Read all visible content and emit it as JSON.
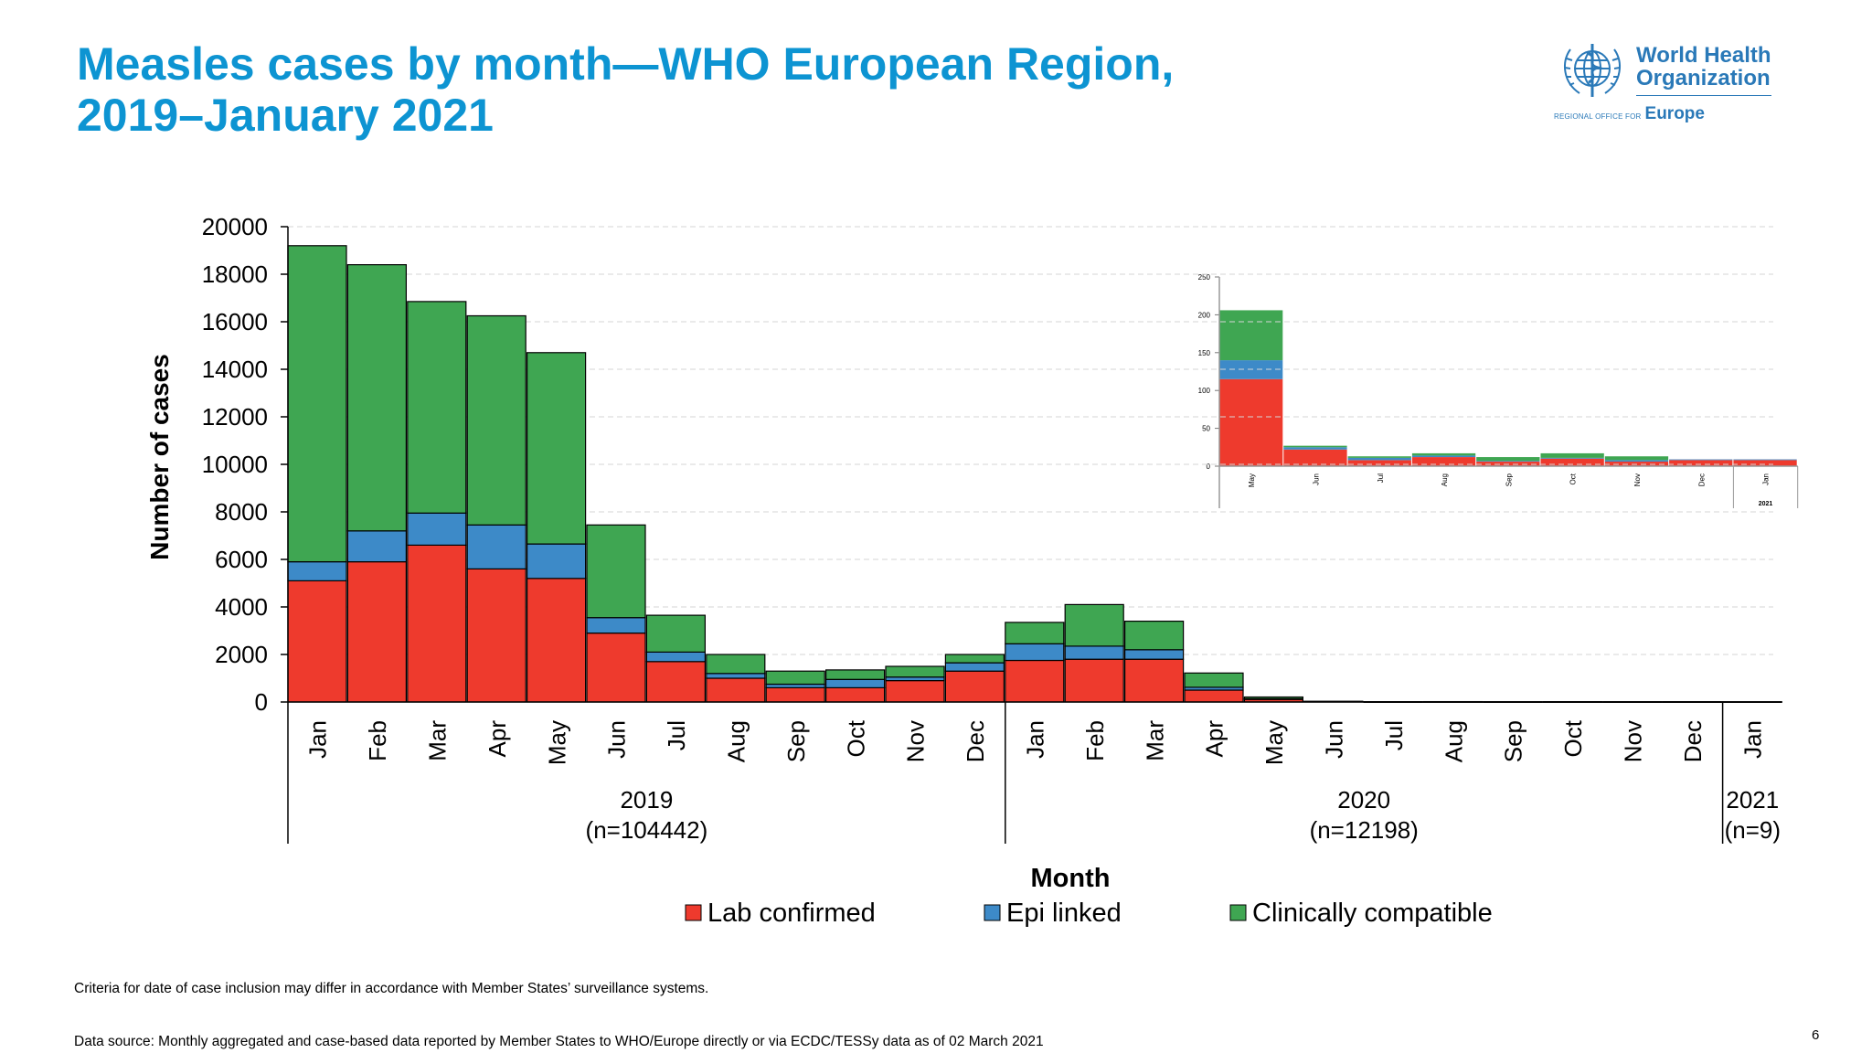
{
  "slide": {
    "title_line1": "Measles cases by month—WHO European Region,",
    "title_line2": "2019–January 2021",
    "logo": {
      "name_line1": "World Health",
      "name_line2": "Organization",
      "office_small": "REGIONAL OFFICE FOR",
      "office_big": "Europe",
      "icon": "who-emblem-icon",
      "color": "#2a79b8"
    },
    "footer_note": "Criteria for date of case inclusion may differ in accordance with Member States’ surveillance systems.",
    "footer_source": "Data source: Monthly aggregated and case-based data reported by Member States to WHO/Europe directly or via ECDC/TESSy data as of 02 March 2021",
    "page_number": "6",
    "title_color": "#0d94d2"
  },
  "chart_data": [
    {
      "type": "bar",
      "stacked": true,
      "ylabel": "Number of cases",
      "xlabel": "Month",
      "ylim": [
        0,
        20000
      ],
      "yticks": [
        "0",
        "2000",
        "4000",
        "6000",
        "8000",
        "10000",
        "12000",
        "14000",
        "16000",
        "18000",
        "20000"
      ],
      "grid": "horizontal dashed",
      "legend_position": "bottom",
      "categories": [
        "Jan",
        "Feb",
        "Mar",
        "Apr",
        "May",
        "Jun",
        "Jul",
        "Aug",
        "Sep",
        "Oct",
        "Nov",
        "Dec",
        "Jan",
        "Feb",
        "Mar",
        "Apr",
        "May",
        "Jun",
        "Jul",
        "Aug",
        "Sep",
        "Oct",
        "Nov",
        "Dec",
        "Jan"
      ],
      "year_groups": [
        {
          "label": "2019",
          "sublabel": "(n=104442)",
          "count": 12
        },
        {
          "label": "2020",
          "sublabel": "(n=12198)",
          "count": 12
        },
        {
          "label": "2021",
          "sublabel": "(n=9)",
          "count": 1
        }
      ],
      "series": [
        {
          "name": "Lab confirmed",
          "color": "#ee3a2d",
          "values": [
            5100,
            5900,
            6600,
            5600,
            5200,
            2900,
            1700,
            1000,
            600,
            600,
            900,
            1300,
            1750,
            1800,
            1800,
            500,
            110,
            20,
            8,
            10,
            5,
            8,
            5,
            7,
            7
          ]
        },
        {
          "name": "Epi linked",
          "color": "#3d8ac8",
          "values": [
            800,
            1300,
            1350,
            1850,
            1450,
            650,
            400,
            200,
            150,
            350,
            150,
            350,
            700,
            550,
            400,
            120,
            30,
            3,
            2,
            3,
            2,
            2,
            2,
            2,
            2
          ]
        },
        {
          "name": "Clinically compatible",
          "color": "#3fa652",
          "values": [
            13300,
            11200,
            8900,
            8800,
            8050,
            3900,
            1550,
            800,
            550,
            400,
            450,
            350,
            900,
            1750,
            1200,
            600,
            70,
            5,
            2,
            3,
            2,
            4,
            4,
            1,
            0
          ]
        }
      ]
    },
    {
      "type": "bar",
      "stacked": true,
      "inset": true,
      "ylim": [
        0,
        250
      ],
      "yticks": [
        "0",
        "50",
        "100",
        "150",
        "200",
        "250"
      ],
      "categories": [
        "May",
        "Jun",
        "Jul",
        "Aug",
        "Sep",
        "Oct",
        "Nov",
        "Dec",
        "Jan"
      ],
      "year_label": "2021",
      "series": [
        {
          "name": "Lab confirmed",
          "values": [
            115,
            22,
            8,
            12,
            6,
            10,
            6,
            8,
            8
          ]
        },
        {
          "name": "Epi linked",
          "values": [
            25,
            3,
            3,
            2,
            1,
            1,
            2,
            1,
            1
          ]
        },
        {
          "name": "Clinically compatible",
          "values": [
            66,
            2,
            2,
            3,
            5,
            6,
            5,
            0,
            0
          ]
        }
      ]
    }
  ]
}
